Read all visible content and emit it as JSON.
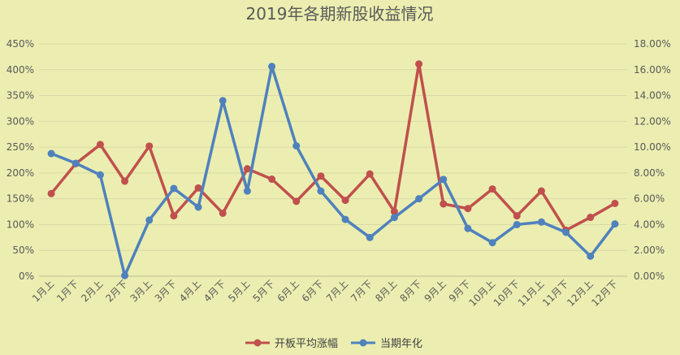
{
  "chart_data": {
    "type": "line",
    "title": "2019年各期新股收益情况",
    "categories": [
      "1月上",
      "1月下",
      "2月上",
      "2月下",
      "3月上",
      "3月下",
      "4月上",
      "4月下",
      "5月上",
      "5月下",
      "6月上",
      "6月下",
      "7月上",
      "7月下",
      "8月上",
      "8月下",
      "9月上",
      "9月下",
      "10月上",
      "10月下",
      "11月上",
      "11月下",
      "12月上",
      "12月下"
    ],
    "left_axis": {
      "min": 0,
      "max": 450,
      "step": 50,
      "unit": "%",
      "ticks": [
        "0%",
        "50%",
        "100%",
        "150%",
        "200%",
        "250%",
        "300%",
        "350%",
        "400%",
        "450%"
      ]
    },
    "right_axis": {
      "min": 0,
      "max": 18,
      "step": 2,
      "unit": "%",
      "ticks": [
        "0.00%",
        "2.00%",
        "4.00%",
        "6.00%",
        "8.00%",
        "10.00%",
        "12.00%",
        "14.00%",
        "16.00%",
        "18.00%"
      ]
    },
    "series": [
      {
        "name": "开板平均涨幅",
        "axis": "left",
        "color": "#c0504d",
        "values": [
          160,
          218,
          255,
          184,
          252,
          117,
          171,
          122,
          208,
          188,
          145,
          194,
          147,
          198,
          125,
          411,
          140,
          131,
          169,
          117,
          165,
          89,
          114,
          141
        ]
      },
      {
        "name": "当期年化",
        "axis": "right",
        "color": "#4f81bd",
        "values": [
          9.5,
          8.75,
          7.85,
          0.05,
          4.35,
          6.8,
          5.35,
          13.6,
          6.6,
          16.25,
          10.1,
          6.6,
          4.4,
          3.0,
          4.55,
          6.0,
          7.5,
          3.7,
          2.6,
          4.0,
          4.2,
          3.4,
          1.55,
          4.05
        ]
      }
    ],
    "grid": true,
    "legend_position": "bottom"
  }
}
